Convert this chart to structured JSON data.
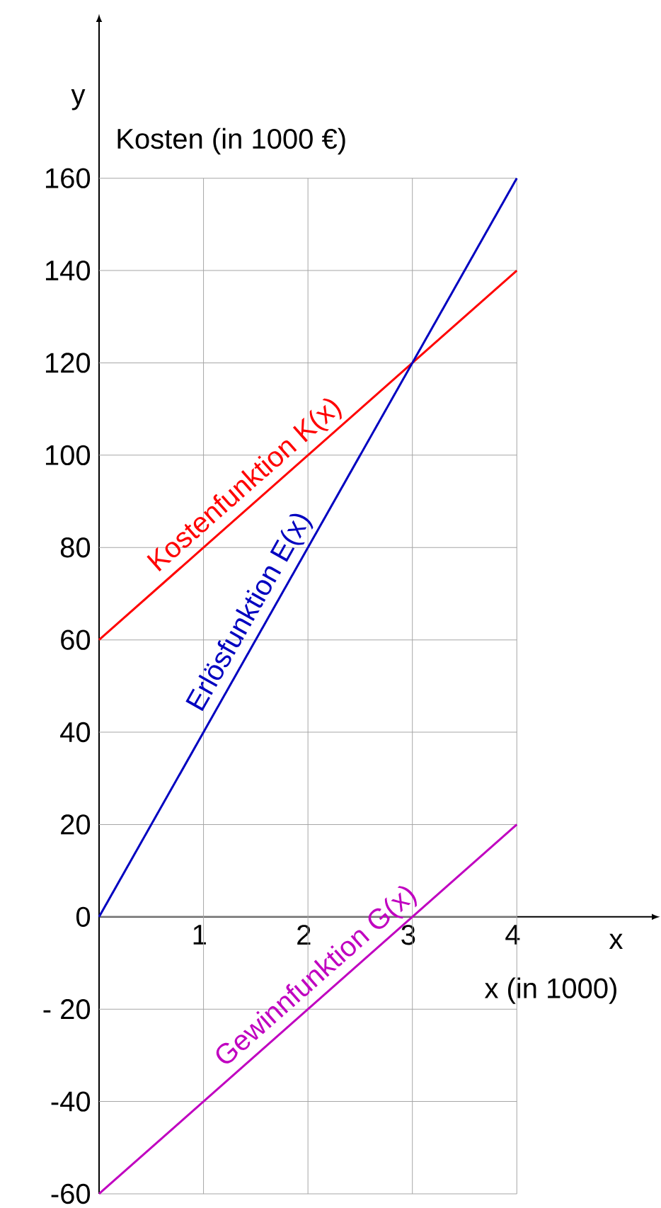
{
  "chart_data": {
    "type": "line",
    "xlabel": "x",
    "ylabel": "y",
    "annotations": [
      "Kosten (in 1000 €)",
      "x (in 1000)"
    ],
    "xlim": [
      0,
      5.3
    ],
    "ylim": [
      -60,
      194
    ],
    "xticks": [
      1,
      2,
      3,
      4
    ],
    "yticks": [
      {
        "value": -60,
        "label": "-60"
      },
      {
        "value": -40,
        "label": "-40"
      },
      {
        "value": -20,
        "label": "- 20"
      },
      {
        "value": 0,
        "label": "0"
      },
      {
        "value": 20,
        "label": "20"
      },
      {
        "value": 40,
        "label": "40"
      },
      {
        "value": 60,
        "label": "60"
      },
      {
        "value": 80,
        "label": "80"
      },
      {
        "value": 100,
        "label": "100"
      },
      {
        "value": 120,
        "label": "120"
      },
      {
        "value": 140,
        "label": "140"
      },
      {
        "value": 160,
        "label": "160"
      }
    ],
    "grid": true,
    "marker": "none",
    "line_style": "solid",
    "x": [
      0,
      4
    ],
    "series": [
      {
        "name": "Kostenfunktion K(x)",
        "color": "#ff0000",
        "values": [
          60,
          140
        ]
      },
      {
        "name": "Erlösfunktion E(x)",
        "color": "#0000c0",
        "values": [
          0,
          160
        ]
      },
      {
        "name": "Gewinnfunktion G(x)",
        "color": "#c000c0",
        "values": [
          -60,
          20
        ]
      }
    ]
  }
}
